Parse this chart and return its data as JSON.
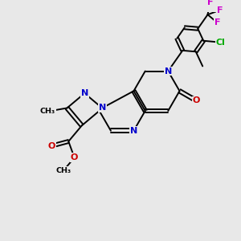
{
  "bg_color": "#e8e8e8",
  "bond_color": "#000000",
  "N_color": "#0000cc",
  "O_color": "#cc0000",
  "Cl_color": "#00aa00",
  "F_color": "#cc00cc",
  "figsize": [
    3.0,
    3.0
  ],
  "dpi": 100,
  "lw": 1.4,
  "fs": 8.0,
  "xlim": [
    0,
    10
  ],
  "ylim": [
    0,
    10
  ]
}
